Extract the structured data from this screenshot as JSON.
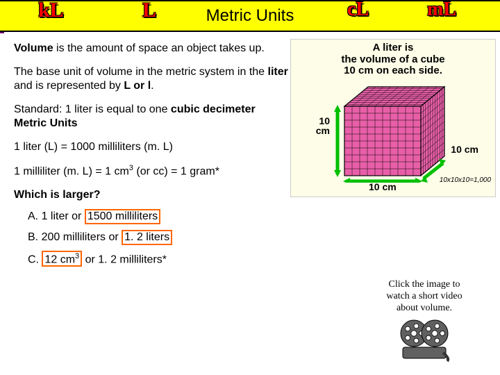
{
  "header": {
    "title": "Metric Units",
    "units": {
      "kl": "kL",
      "l": "L",
      "cl": "cL",
      "ml": "mL"
    },
    "bg": "#ffff00",
    "unit_color": "#ff0000"
  },
  "paragraphs": {
    "p1a": "Volume",
    "p1b": " is the amount of space an object takes up.",
    "p2a": "The base unit of volume in the metric system in the ",
    "p2b": "liter",
    "p2c": " and is represented by ",
    "p2d": "L or l",
    "p2e": ".",
    "p3a": "Standard: 1 liter is equal to one ",
    "p3b": "cubic decimeter",
    "p3c": "Metric Units",
    "p4": "1 liter (L) = 1000 milliliters (m. L)",
    "p5a": "1 milliliter (m. L) = 1 cm",
    "p5b": "3",
    "p5c": " (or cc) = 1 gram*"
  },
  "question": {
    "prompt": "Which is larger?",
    "a_pre": "A. 1 liter or ",
    "a_hl": "1500 milliliters",
    "b_pre": "B. 200 milliliters or ",
    "b_hl": "1. 2 liters",
    "c_pre": "C. ",
    "c_hl_a": "12 cm",
    "c_hl_b": "3",
    "c_post": " or 1. 2 milliliters*"
  },
  "cube": {
    "title_l1": "A liter is",
    "title_l2": "the volume of a cube",
    "title_l3": "10 cm on each side.",
    "label_left": "10 cm",
    "label_right": "10 cm",
    "label_bottom": "10 cm",
    "calc": "10x10x10=1,000",
    "fill": "#e85fa8",
    "edge": "#000000",
    "bg": "#fdfde8",
    "arrow": "#00c000",
    "grid_n": 10
  },
  "video": {
    "caption_l1": "Click the image to",
    "caption_l2": "watch a short video",
    "caption_l3": "about volume.",
    "reel_color": "#606060"
  }
}
